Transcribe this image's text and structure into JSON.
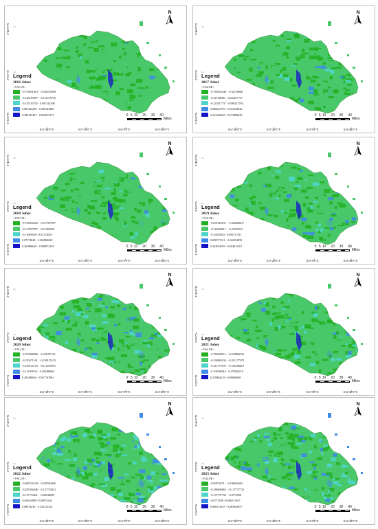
{
  "colors": [
    "#24b024",
    "#49c86a",
    "#4fd6cc",
    "#3f8be8",
    "#1414c8"
  ],
  "y_ticks": [
    "2°40'0\"N",
    "2°0'0\"N",
    "1°20'0\"N"
  ],
  "x_ticks": [
    "102°40'0\"E",
    "103°20'0\"E",
    "104°0'0\"E",
    "104°40'0\"E"
  ],
  "legend_title": "Legend",
  "legend_field": "<VALUE>",
  "north_label": "N",
  "scale": {
    "ticks": [
      "0",
      "5",
      "10",
      "20",
      "30",
      "40"
    ],
    "unit": "Miles"
  },
  "panels": [
    {
      "id": "2016",
      "title": "2016 Johor",
      "blue_level": 0.05,
      "ranges": [
        "-0.739931619 - -0.345183998",
        "-0.345183997 - -0.155119716",
        "-0.155119715 - 0.081324298",
        "0.081324299 - 0.380143496",
        "0.380143497 - 0.954675173"
      ]
    },
    {
      "id": "2017",
      "title": "2017 Johor",
      "blue_level": 0.1,
      "ranges": [
        "-0.785053349 - -0.32738068",
        "-0.32738068 - -0.222017737",
        "-0.222017737 - 0.088212793",
        "0.088212793 - 0.234148646",
        "0.234148646 - 0.673988429"
      ]
    },
    {
      "id": "2018",
      "title": "2018 Johor",
      "blue_level": 0.15,
      "ranges": [
        "-0.738394203 - -0.317937997",
        "-0.317937997 - -0.11069958",
        "-0.11069958 - 0.07274049",
        "0.07274049 - 0.262886629",
        "0.262886629 - 0.998872318"
      ]
    },
    {
      "id": "2019",
      "title": "2019 Johor",
      "blue_level": 0.25,
      "ranges": [
        "-0.691929191 - -0.328408617",
        "-0.328408617 - -0.23955023",
        "-0.23955023 - 0.096717611",
        "0.096717611 - 0.242054059",
        "0.242054059 - 0.924611367"
      ]
    },
    {
      "id": "2020",
      "title": "2020 Johor",
      "blue_level": 0.35,
      "ranges": [
        "-0.700688069 - -0.325471161",
        "-0.325471161 - -0.238155153",
        "-0.238155153 - -0.111109913",
        "-0.111109913 - 0.204488662",
        "0.204488662 - 0.917767861"
      ]
    },
    {
      "id": "2021",
      "title": "2021 Johor",
      "blue_level": 0.3,
      "ranges": [
        "-0.789408112 - -0.338884334",
        "-0.338884334 - -0.211177978",
        "-0.211177978 - -0.108186619",
        "-0.108186619 - 0.270804219",
        "0.270804219 - 0.90846069"
      ]
    },
    {
      "id": "2022",
      "title": "2022 Johor",
      "blue_level": 0.55,
      "ranges": [
        "-0.606734139 - -0.285594446",
        "-0.285594446 - -0.137733041",
        "-0.137733041 - -0.00544899",
        "-0.00544899 - 0.08974256",
        "0.08974256 - 0.332112314"
      ]
    },
    {
      "id": "2023",
      "title": "2023 Johor",
      "blue_level": 0.5,
      "ranges": [
        "-0.69972671 - -0.186694665",
        "-0.186694665 - -0.137737733",
        "-0.137737733 - -0.0774598",
        "-0.0774598 - 0.066513637",
        "0.066513637 - 0.495062957"
      ]
    }
  ]
}
